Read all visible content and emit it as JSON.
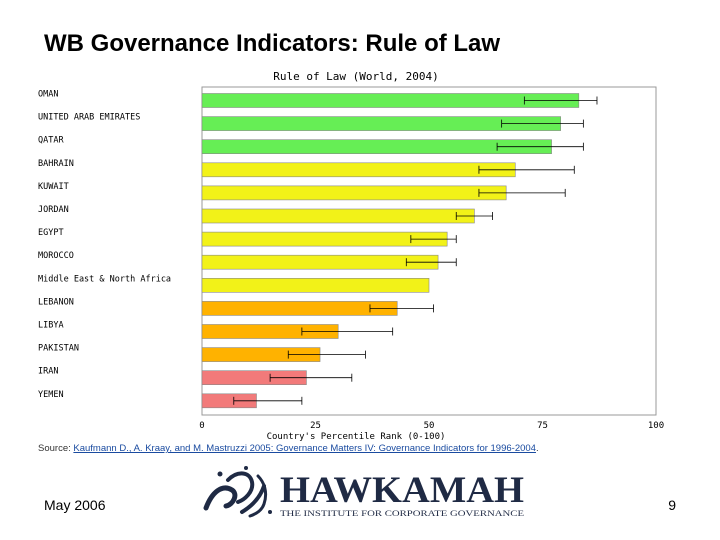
{
  "slide": {
    "title": "WB Governance Indicators: Rule of Law",
    "date": "May 2006",
    "page_number": "9"
  },
  "source": {
    "prefix": "Source: ",
    "citation": "Kaufmann D., A. Kraay, and M. Mastruzzi 2005: Governance Matters IV: Governance Indicators for 1996-2004",
    "suffix": "."
  },
  "logo": {
    "wordmark": "HAWKAMAH",
    "tagline": "THE INSTITUTE FOR CORPORATE GOVERNANCE"
  },
  "colors": {
    "green": "#66ee55",
    "yellow": "#f2f218",
    "orange": "#ffb200",
    "pink": "#f27a7a",
    "axis": "#999999",
    "errorbar": "#000000"
  },
  "chart_data": {
    "type": "bar",
    "orientation": "horizontal",
    "title": "Rule of Law (World, 2004)",
    "xlabel": "Country's Percentile Rank (0-100)",
    "xlim": [
      0,
      100
    ],
    "xticks": [
      0,
      25,
      50,
      75,
      100
    ],
    "grid": false,
    "categories": [
      "OMAN",
      "UNITED ARAB EMIRATES",
      "QATAR",
      "BAHRAIN",
      "KUWAIT",
      "JORDAN",
      "EGYPT",
      "MOROCCO",
      "Middle East & North Africa",
      "LEBANON",
      "LIBYA",
      "PAKISTAN",
      "IRAN",
      "YEMEN"
    ],
    "values": [
      83,
      79,
      77,
      69,
      67,
      60,
      54,
      52,
      50,
      43,
      30,
      26,
      23,
      12
    ],
    "bar_colors": [
      "green",
      "green",
      "green",
      "yellow",
      "yellow",
      "yellow",
      "yellow",
      "yellow",
      "yellow",
      "orange",
      "orange",
      "orange",
      "pink",
      "pink"
    ],
    "error_low": [
      71,
      66,
      65,
      61,
      61,
      56,
      46,
      45,
      null,
      37,
      22,
      19,
      15,
      7
    ],
    "error_high": [
      87,
      84,
      84,
      82,
      80,
      64,
      56,
      56,
      null,
      51,
      42,
      36,
      33,
      22
    ]
  }
}
